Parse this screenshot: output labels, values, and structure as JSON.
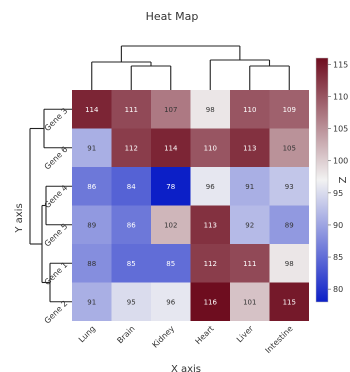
{
  "chart_data": {
    "type": "heatmap",
    "title": "Heat Map",
    "xlabel": "X axis",
    "ylabel": "Y axis",
    "colorbar_label": "Z",
    "x": [
      "Lung",
      "Brain",
      "Kidney",
      "Heart",
      "Liver",
      "Intestine"
    ],
    "y": [
      "Gene 3",
      "Gene 6",
      "Gene 4",
      "Gene 5",
      "Gene 1",
      "Gene 2"
    ],
    "z": [
      [
        114,
        111,
        107,
        98,
        110,
        109
      ],
      [
        91,
        112,
        114,
        110,
        113,
        105
      ],
      [
        86,
        84,
        78,
        96,
        91,
        93
      ],
      [
        89,
        86,
        102,
        113,
        92,
        89
      ],
      [
        88,
        85,
        85,
        112,
        111,
        98
      ],
      [
        91,
        95,
        96,
        116,
        101,
        115
      ]
    ],
    "zlim": [
      78,
      116
    ],
    "colorbar_ticks": [
      80,
      85,
      90,
      95,
      100,
      105,
      110,
      115
    ],
    "colorscale": [
      "#0c1fc7",
      "#f2f2f2",
      "#6e0d1f"
    ],
    "dendrogram": {
      "rows": true,
      "columns": true
    }
  }
}
